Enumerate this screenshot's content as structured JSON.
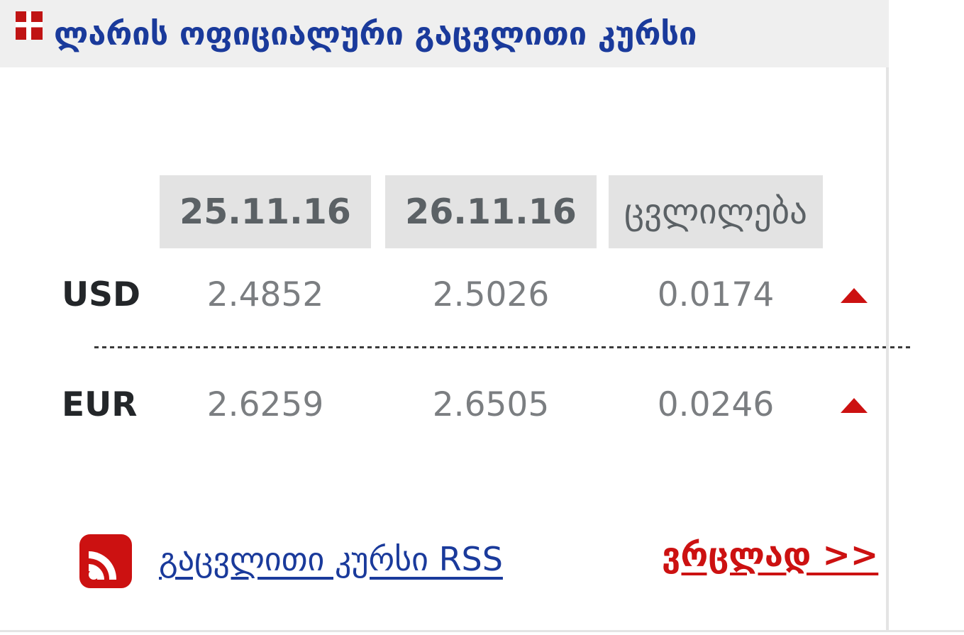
{
  "header": {
    "title": "ლარის ოფიციალური გაცვლითი კურსი",
    "icon": "red-cross-icon"
  },
  "table": {
    "columns": {
      "prev_date": "25.11.16",
      "curr_date": "26.11.16",
      "change": "ცვლილება"
    },
    "rows": [
      {
        "code": "USD",
        "prev": "2.4852",
        "curr": "2.5026",
        "change": "0.0174",
        "trend": "up"
      },
      {
        "code": "EUR",
        "prev": "2.6259",
        "curr": "2.6505",
        "change": "0.0246",
        "trend": "up"
      }
    ]
  },
  "footer": {
    "rss_link_label": "გაცვლითი კურსი RSS",
    "more_link_label": "ვრცლად >>"
  },
  "colors": {
    "title_blue": "#1a3a9b",
    "link_blue": "#1a3a9b",
    "accent_red": "#cc1111",
    "header_band_bg": "#efefef",
    "column_box_bg": "#e3e3e3",
    "value_gray": "#7b7e81",
    "date_gray": "#5b6165",
    "code_dark": "#232629",
    "border_gray": "#e4e4e4"
  }
}
